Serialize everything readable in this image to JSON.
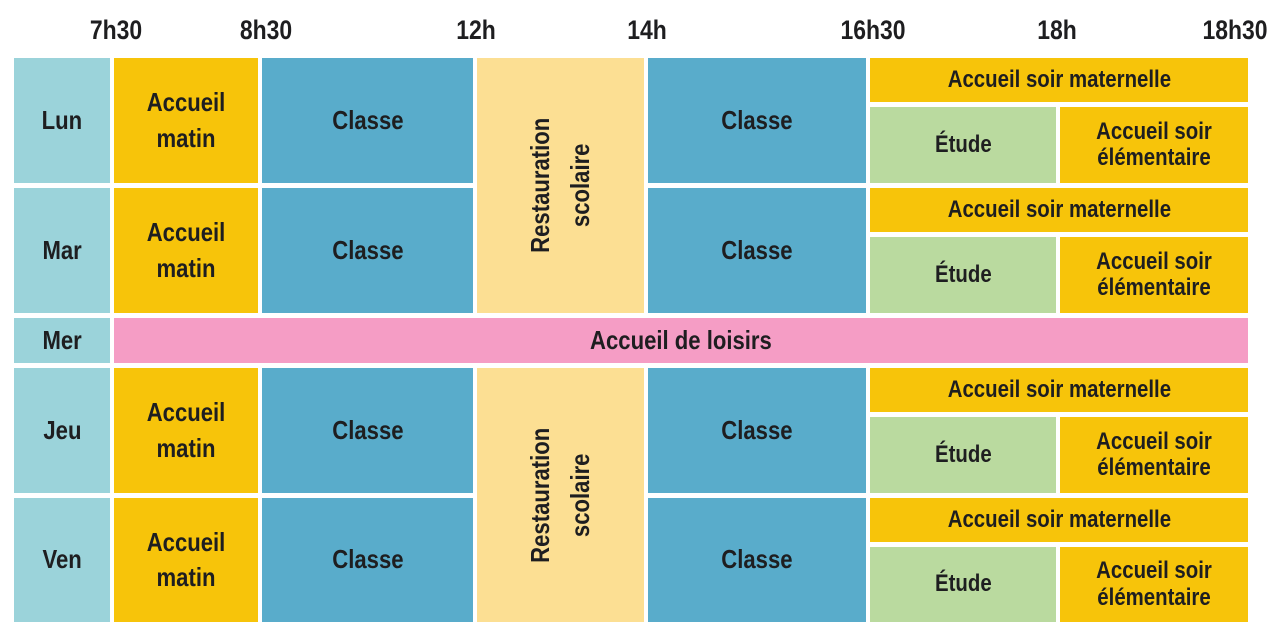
{
  "header": {
    "times": [
      "7h30",
      "8h30",
      "12h",
      "14h",
      "16h30",
      "18h",
      "18h30"
    ]
  },
  "days": [
    "Lun",
    "Mar",
    "Mer",
    "Jeu",
    "Ven"
  ],
  "labels": {
    "morning_care": "Accueil matin",
    "class": "Classe",
    "lunch": "Restauration\nscolaire",
    "evening_maternelle": "Accueil soir maternelle",
    "study": "Étude",
    "evening_elementaire": "Accueil soir élémentaire",
    "wednesday_leisure": "Accueil de loisirs"
  },
  "colors": {
    "day_cell": "#9bd3da",
    "accueil_yellow": "#f7c40a",
    "classe_blue": "#59accb",
    "restauration_cream": "#fcdf93",
    "etude_green": "#bada9f",
    "loisirs_pink": "#f59dc5",
    "text": "#1e1e20",
    "background": "#ffffff"
  },
  "schedule": [
    {
      "day": "Lun",
      "blocks": [
        {
          "activity": "Accueil matin",
          "start": "7h30",
          "end": "8h30"
        },
        {
          "activity": "Classe",
          "start": "8h30",
          "end": "12h"
        },
        {
          "activity": "Restauration scolaire",
          "start": "12h",
          "end": "14h"
        },
        {
          "activity": "Classe",
          "start": "14h",
          "end": "16h30"
        },
        {
          "activity": "Accueil soir maternelle",
          "start": "16h30",
          "end": "18h30"
        },
        {
          "activity": "Étude",
          "start": "16h30",
          "end": "18h"
        },
        {
          "activity": "Accueil soir élémentaire",
          "start": "18h",
          "end": "18h30"
        }
      ]
    },
    {
      "day": "Mar",
      "blocks": [
        {
          "activity": "Accueil matin",
          "start": "7h30",
          "end": "8h30"
        },
        {
          "activity": "Classe",
          "start": "8h30",
          "end": "12h"
        },
        {
          "activity": "Restauration scolaire",
          "start": "12h",
          "end": "14h"
        },
        {
          "activity": "Classe",
          "start": "14h",
          "end": "16h30"
        },
        {
          "activity": "Accueil soir maternelle",
          "start": "16h30",
          "end": "18h30"
        },
        {
          "activity": "Étude",
          "start": "16h30",
          "end": "18h"
        },
        {
          "activity": "Accueil soir élémentaire",
          "start": "18h",
          "end": "18h30"
        }
      ]
    },
    {
      "day": "Mer",
      "blocks": [
        {
          "activity": "Accueil de loisirs",
          "start": "7h30",
          "end": "18h30"
        }
      ]
    },
    {
      "day": "Jeu",
      "blocks": [
        {
          "activity": "Accueil matin",
          "start": "7h30",
          "end": "8h30"
        },
        {
          "activity": "Classe",
          "start": "8h30",
          "end": "12h"
        },
        {
          "activity": "Restauration scolaire",
          "start": "12h",
          "end": "14h"
        },
        {
          "activity": "Classe",
          "start": "14h",
          "end": "16h30"
        },
        {
          "activity": "Accueil soir maternelle",
          "start": "16h30",
          "end": "18h30"
        },
        {
          "activity": "Étude",
          "start": "16h30",
          "end": "18h"
        },
        {
          "activity": "Accueil soir élémentaire",
          "start": "18h",
          "end": "18h30"
        }
      ]
    },
    {
      "day": "Ven",
      "blocks": [
        {
          "activity": "Accueil matin",
          "start": "7h30",
          "end": "8h30"
        },
        {
          "activity": "Classe",
          "start": "8h30",
          "end": "12h"
        },
        {
          "activity": "Restauration scolaire",
          "start": "12h",
          "end": "14h"
        },
        {
          "activity": "Classe",
          "start": "14h",
          "end": "16h30"
        },
        {
          "activity": "Accueil soir maternelle",
          "start": "16h30",
          "end": "18h30"
        },
        {
          "activity": "Étude",
          "start": "16h30",
          "end": "18h"
        },
        {
          "activity": "Accueil soir élémentaire",
          "start": "18h",
          "end": "18h30"
        }
      ]
    }
  ]
}
